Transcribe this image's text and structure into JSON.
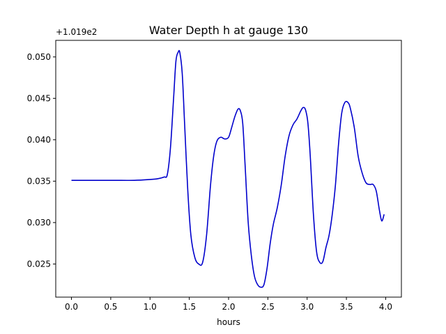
{
  "chart_data": {
    "type": "line",
    "title": "Water Depth h at gauge 130",
    "xlabel": "hours",
    "ylabel": "",
    "y_offset_label": "+1.019e2",
    "xlim": [
      -0.2,
      4.2
    ],
    "ylim": [
      0.021,
      0.052
    ],
    "grid": false,
    "xticks": [
      0.0,
      0.5,
      1.0,
      1.5,
      2.0,
      2.5,
      3.0,
      3.5,
      4.0
    ],
    "xtick_labels": [
      "0.0",
      "0.5",
      "1.0",
      "1.5",
      "2.0",
      "2.5",
      "3.0",
      "3.5",
      "4.0"
    ],
    "yticks": [
      0.025,
      0.03,
      0.035,
      0.04,
      0.045,
      0.05
    ],
    "ytick_labels": [
      "0.025",
      "0.030",
      "0.035",
      "0.040",
      "0.045",
      "0.050"
    ],
    "series": [
      {
        "color": "#0000cc",
        "x": [
          0.0,
          0.5,
          0.8,
          1.0,
          1.1,
          1.18,
          1.22,
          1.26,
          1.3,
          1.33,
          1.36,
          1.38,
          1.41,
          1.44,
          1.48,
          1.52,
          1.57,
          1.62,
          1.67,
          1.72,
          1.77,
          1.81,
          1.85,
          1.9,
          1.95,
          2.0,
          2.04,
          2.08,
          2.12,
          2.15,
          2.18,
          2.21,
          2.25,
          2.29,
          2.33,
          2.37,
          2.41,
          2.45,
          2.49,
          2.53,
          2.57,
          2.62,
          2.67,
          2.72,
          2.77,
          2.82,
          2.87,
          2.92,
          2.95,
          2.98,
          3.01,
          3.04,
          3.08,
          3.12,
          3.16,
          3.2,
          3.24,
          3.28,
          3.32,
          3.36,
          3.4,
          3.44,
          3.48,
          3.52,
          3.55,
          3.6,
          3.65,
          3.7,
          3.75,
          3.8,
          3.84,
          3.88,
          3.92,
          3.95,
          3.98
        ],
        "values": [
          0.0351,
          0.0351,
          0.0351,
          0.0352,
          0.0353,
          0.0355,
          0.0358,
          0.039,
          0.045,
          0.0495,
          0.0506,
          0.0505,
          0.048,
          0.042,
          0.034,
          0.0285,
          0.0258,
          0.025,
          0.0252,
          0.0285,
          0.0345,
          0.038,
          0.0398,
          0.0403,
          0.0401,
          0.0403,
          0.0415,
          0.0428,
          0.0437,
          0.0435,
          0.042,
          0.037,
          0.03,
          0.026,
          0.0235,
          0.0225,
          0.0222,
          0.0225,
          0.0245,
          0.0275,
          0.0298,
          0.0318,
          0.0345,
          0.038,
          0.0405,
          0.0418,
          0.0425,
          0.0435,
          0.0439,
          0.0436,
          0.042,
          0.038,
          0.031,
          0.0265,
          0.0252,
          0.0253,
          0.027,
          0.0285,
          0.031,
          0.0345,
          0.0395,
          0.0432,
          0.0445,
          0.0445,
          0.0438,
          0.0415,
          0.038,
          0.036,
          0.0348,
          0.0346,
          0.0346,
          0.0338,
          0.0315,
          0.0302,
          0.031
        ]
      }
    ]
  }
}
